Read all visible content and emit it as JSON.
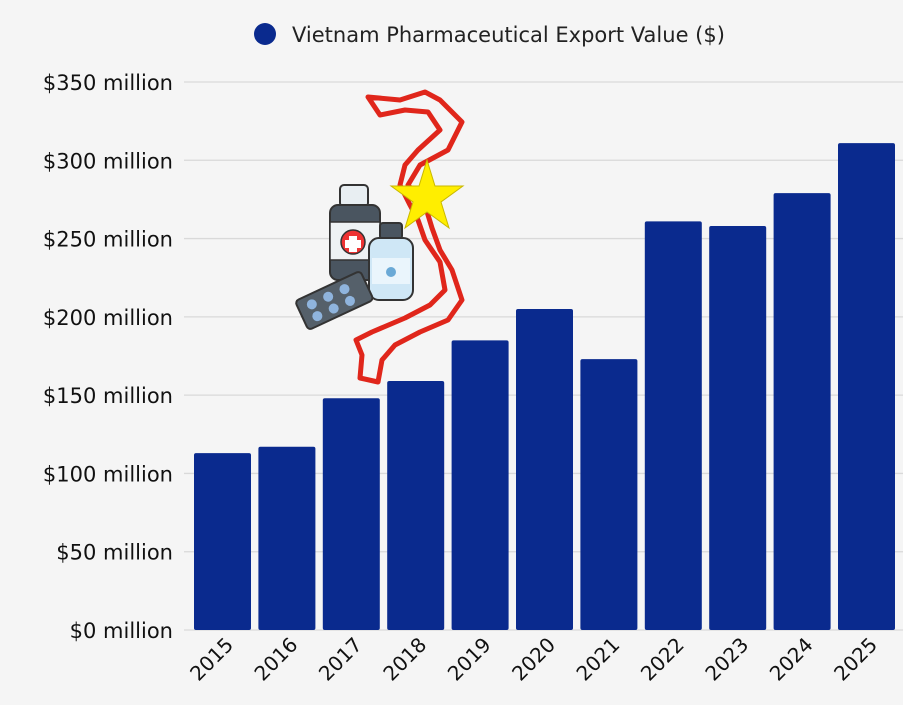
{
  "chart_data": {
    "type": "bar",
    "title": "",
    "xlabel": "",
    "ylabel": "",
    "categories": [
      "2015",
      "2016",
      "2017",
      "2018",
      "2019",
      "2020",
      "2021",
      "2022",
      "2023",
      "2024",
      "2025"
    ],
    "series": [
      {
        "name": "Vietnam Pharmaceutical Export Value ($)",
        "values": [
          113,
          117,
          148,
          159,
          185,
          205,
          173,
          261,
          258,
          279,
          311
        ],
        "unit": "million USD"
      }
    ],
    "ylim": [
      0,
      350
    ],
    "yticks": [
      0,
      50,
      100,
      150,
      200,
      250,
      300,
      350
    ],
    "ytick_labels": [
      "$0 million",
      "$50 million",
      "$100 million",
      "$150 million",
      "$200 million",
      "$250 million",
      "$300 million",
      "$350 million"
    ],
    "grid": true,
    "legend_position": "top",
    "colors": {
      "bar": "#0a2a8e",
      "background": "#f5f5f5",
      "grid": "#d9d9d9"
    },
    "decoration": "vietnam-map-outline-with-star-and-medicine-bottles-icon"
  }
}
